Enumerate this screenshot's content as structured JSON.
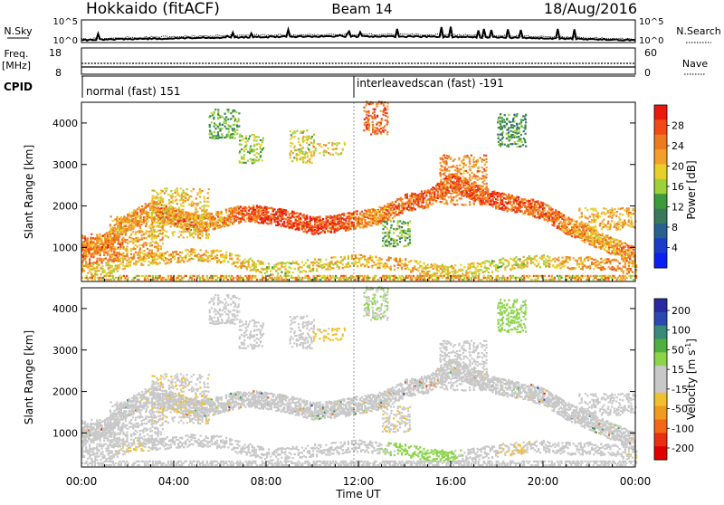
{
  "header": {
    "station": "Hokkaido (fitACF)",
    "beam": "Beam 14",
    "date": "18/Aug/2016"
  },
  "status_panel": {
    "nsky_label": "N.Sky",
    "nsky_ticks": [
      "10^5",
      "10^0"
    ],
    "nsearch_label": "N.Search",
    "freq_label_1": "Freq.",
    "freq_label_2": "[MHz]",
    "freq_ticks": [
      "18",
      "8"
    ],
    "nave_ticks": [
      "60",
      "0"
    ],
    "nave_label": "Nave",
    "cpid_label": "CPID",
    "cpid_entries": [
      {
        "label": "normal (fast) 151",
        "start_hour": 0
      },
      {
        "label": "interleavedscan (fast) -191",
        "start_hour": 12
      }
    ]
  },
  "axes": {
    "ylabel": "Slant Range [km]",
    "xlabel": "Time UT",
    "y_ticks": [
      "4000",
      "3000",
      "2000",
      "1000"
    ],
    "x_ticks": [
      "00:00",
      "04:00",
      "08:00",
      "12:00",
      "16:00",
      "20:00",
      "00:00"
    ]
  },
  "colorbars": {
    "power": {
      "label": "Power [dB]",
      "ticks": [
        "28",
        "24",
        "20",
        "16",
        "12",
        "8",
        "4"
      ],
      "colors_top_to_bottom": [
        "#e8190f",
        "#f24a14",
        "#ee7a1f",
        "#f2a02a",
        "#e8d02a",
        "#9ed03a",
        "#3c9a3c",
        "#3a7a5a",
        "#2a6090",
        "#1a3cc8",
        "#0a20f0"
      ]
    },
    "velocity": {
      "label": "Velocity [m s^-1]",
      "ticks": [
        "200",
        "100",
        "50",
        "15",
        "-15",
        "-50",
        "-100",
        "-200"
      ],
      "colors_top_to_bottom": [
        "#2a2aa0",
        "#2a4ab0",
        "#3a8a7a",
        "#4fb040",
        "#8cd44a",
        "#c8c8c8",
        "#c8c8c8",
        "#f0c030",
        "#f09a20",
        "#f06818",
        "#e83010",
        "#e00000"
      ]
    }
  },
  "chart_data": [
    {
      "type": "heatmap",
      "name": "power",
      "title": "Hokkaido (fitACF) Beam 14 18/Aug/2016",
      "xlabel": "Time UT",
      "ylabel": "Slant Range [km]",
      "xlim": [
        0,
        24
      ],
      "ylim": [
        180,
        4500
      ],
      "x_unit": "hours UT",
      "colorbar_label": "Power [dB]",
      "colorbar_range": [
        0,
        32
      ],
      "main_band_track": {
        "x": [
          0,
          1,
          2,
          3,
          4,
          5,
          6,
          7,
          8,
          9,
          10,
          11,
          12,
          13,
          14,
          15,
          16,
          17,
          18,
          19,
          20,
          21,
          22,
          23,
          24
        ],
        "range_km": [
          900,
          1100,
          1600,
          1900,
          1700,
          1550,
          1650,
          1800,
          1750,
          1650,
          1500,
          1550,
          1650,
          1750,
          2050,
          2150,
          2550,
          2300,
          2100,
          2000,
          1850,
          1500,
          1250,
          1000,
          750
        ],
        "power_db": [
          24,
          22,
          22,
          24,
          26,
          24,
          22,
          26,
          28,
          28,
          28,
          28,
          24,
          24,
          26,
          26,
          28,
          28,
          28,
          26,
          26,
          24,
          22,
          22,
          24
        ]
      },
      "lower_band_track": {
        "x": [
          0,
          1,
          2,
          3,
          4,
          5,
          6,
          7,
          8,
          9,
          10,
          11,
          12,
          13,
          14,
          15,
          16,
          17,
          18,
          19,
          20,
          21,
          22,
          23,
          24
        ],
        "range_km": [
          500,
          450,
          650,
          700,
          750,
          800,
          750,
          600,
          450,
          500,
          550,
          600,
          650,
          600,
          550,
          450,
          400,
          450,
          550,
          600,
          650,
          600,
          600,
          550,
          450
        ],
        "power_db": [
          22,
          18,
          20,
          20,
          22,
          20,
          22,
          20,
          18,
          18,
          20,
          20,
          20,
          22,
          22,
          20,
          20,
          18,
          18,
          18,
          20,
          22,
          22,
          24,
          22
        ]
      },
      "patches": [
        {
          "x0": 0.0,
          "x1": 1.8,
          "r0": 600,
          "r1": 1300,
          "power_db": 26
        },
        {
          "x0": 1.2,
          "x1": 3.5,
          "r0": 700,
          "r1": 1700,
          "power_db": 22
        },
        {
          "x0": 3.0,
          "x1": 5.5,
          "r0": 1200,
          "r1": 2400,
          "power_db": 20
        },
        {
          "x0": 5.5,
          "x1": 6.8,
          "r0": 3600,
          "r1": 4300,
          "power_db": 14
        },
        {
          "x0": 6.8,
          "x1": 7.8,
          "r0": 3000,
          "r1": 3700,
          "power_db": 16
        },
        {
          "x0": 9.0,
          "x1": 10.0,
          "r0": 3000,
          "r1": 3800,
          "power_db": 18
        },
        {
          "x0": 10.0,
          "x1": 11.4,
          "r0": 3200,
          "r1": 3500,
          "power_db": 20
        },
        {
          "x0": 12.2,
          "x1": 13.2,
          "r0": 3700,
          "r1": 4500,
          "power_db": 26
        },
        {
          "x0": 13.0,
          "x1": 14.2,
          "r0": 1000,
          "r1": 1600,
          "power_db": 14
        },
        {
          "x0": 15.5,
          "x1": 17.5,
          "r0": 2000,
          "r1": 3200,
          "power_db": 24
        },
        {
          "x0": 18.0,
          "x1": 19.2,
          "r0": 3400,
          "r1": 4200,
          "power_db": 12
        },
        {
          "x0": 21.5,
          "x1": 24.0,
          "r0": 1400,
          "r1": 1900,
          "power_db": 22
        }
      ]
    },
    {
      "type": "heatmap",
      "name": "velocity",
      "title": "Hokkaido (fitACF) Beam 14 18/Aug/2016",
      "xlabel": "Time UT",
      "ylabel": "Slant Range [km]",
      "xlim": [
        0,
        24
      ],
      "ylim": [
        180,
        4500
      ],
      "x_unit": "hours UT",
      "colorbar_label": "Velocity [m s^-1]",
      "colorbar_range": [
        -250,
        250
      ],
      "main_band_velocity_ms": [
        0,
        0,
        -20,
        -30,
        -10,
        0,
        0,
        -10,
        0,
        0,
        5,
        0,
        0,
        0,
        -20,
        0,
        5,
        0,
        0,
        -20,
        -30,
        -20,
        0,
        0,
        0
      ],
      "lower_band_velocity_ms": [
        0,
        -20,
        -40,
        -30,
        0,
        0,
        -20,
        -10,
        0,
        0,
        0,
        0,
        0,
        40,
        60,
        60,
        60,
        0,
        -30,
        -40,
        -20,
        0,
        0,
        0,
        -40
      ],
      "patches": [
        {
          "x0": 0.0,
          "x1": 1.8,
          "r0": 600,
          "r1": 1300,
          "velocity_ms": 0
        },
        {
          "x0": 1.2,
          "x1": 3.5,
          "r0": 700,
          "r1": 1700,
          "velocity_ms": -20
        },
        {
          "x0": 3.0,
          "x1": 5.5,
          "r0": 1200,
          "r1": 2400,
          "velocity_ms": -30
        },
        {
          "x0": 5.5,
          "x1": 6.8,
          "r0": 3600,
          "r1": 4300,
          "velocity_ms": 0
        },
        {
          "x0": 6.8,
          "x1": 7.8,
          "r0": 3000,
          "r1": 3700,
          "velocity_ms": 0
        },
        {
          "x0": 9.0,
          "x1": 10.0,
          "r0": 3000,
          "r1": 3800,
          "velocity_ms": -20
        },
        {
          "x0": 10.0,
          "x1": 11.4,
          "r0": 3200,
          "r1": 3500,
          "velocity_ms": -60
        },
        {
          "x0": 12.2,
          "x1": 13.2,
          "r0": 3700,
          "r1": 4500,
          "velocity_ms": 40
        },
        {
          "x0": 13.0,
          "x1": 14.2,
          "r0": 1000,
          "r1": 1600,
          "velocity_ms": -30
        },
        {
          "x0": 15.5,
          "x1": 17.5,
          "r0": 2000,
          "r1": 3200,
          "velocity_ms": 0
        },
        {
          "x0": 18.0,
          "x1": 19.2,
          "r0": 3400,
          "r1": 4200,
          "velocity_ms": 60
        },
        {
          "x0": 21.5,
          "x1": 24.0,
          "r0": 1400,
          "r1": 1900,
          "velocity_ms": -20
        }
      ]
    }
  ]
}
